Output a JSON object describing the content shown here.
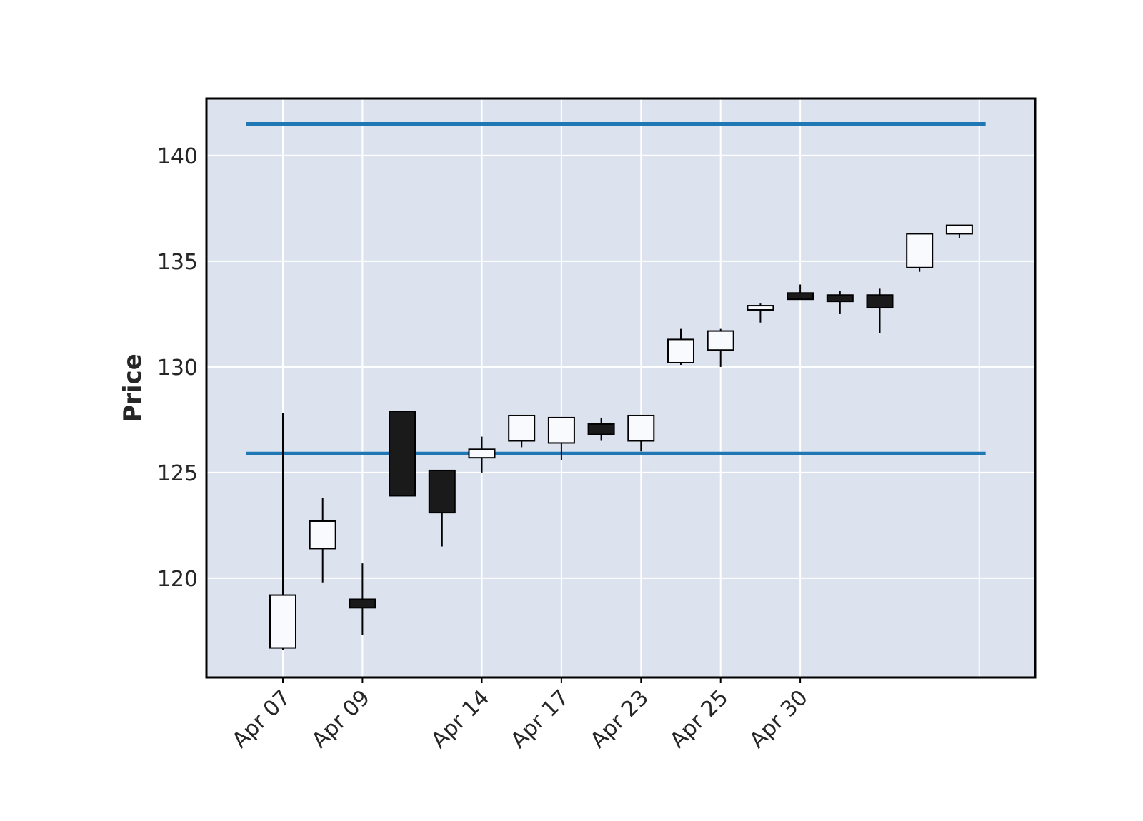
{
  "chart_data": {
    "type": "candlestick",
    "title": "",
    "xlabel": "",
    "ylabel": "Price",
    "grid": true,
    "colors": {
      "background": "#dde3ee",
      "grid": "#ffffff",
      "up_fill": "#f8fafd",
      "down_fill": "#1a1a1a",
      "line": "#1f77b4",
      "text": "#262626"
    },
    "x_tick_labels": [
      "Apr 07",
      "Apr 09",
      "Apr 14",
      "Apr 17",
      "Apr 23",
      "Apr 25",
      "Apr 30"
    ],
    "x_tick_indices": [
      0,
      2,
      5,
      7,
      9,
      11,
      13
    ],
    "y_ticks": [
      120,
      125,
      130,
      135,
      140
    ],
    "ylim": [
      115.3,
      142.7
    ],
    "candles": [
      {
        "open": 116.7,
        "high": 127.8,
        "low": 116.6,
        "close": 119.2
      },
      {
        "open": 121.4,
        "high": 123.8,
        "low": 119.8,
        "close": 122.7
      },
      {
        "open": 119.0,
        "high": 120.7,
        "low": 117.3,
        "close": 118.6
      },
      {
        "open": 127.9,
        "high": 127.9,
        "low": 123.9,
        "close": 123.9
      },
      {
        "open": 125.1,
        "high": 125.1,
        "low": 121.5,
        "close": 123.1
      },
      {
        "open": 125.7,
        "high": 126.7,
        "low": 125.0,
        "close": 126.1
      },
      {
        "open": 126.5,
        "high": 127.7,
        "low": 126.2,
        "close": 127.7
      },
      {
        "open": 126.4,
        "high": 127.6,
        "low": 125.6,
        "close": 127.6
      },
      {
        "open": 127.3,
        "high": 127.6,
        "low": 126.5,
        "close": 126.8
      },
      {
        "open": 126.5,
        "high": 127.7,
        "low": 126.0,
        "close": 127.7
      },
      {
        "open": 130.2,
        "high": 131.8,
        "low": 130.1,
        "close": 131.3
      },
      {
        "open": 130.8,
        "high": 131.8,
        "low": 130.0,
        "close": 131.7
      },
      {
        "open": 132.7,
        "high": 133.0,
        "low": 132.1,
        "close": 132.9
      },
      {
        "open": 133.5,
        "high": 133.9,
        "low": 133.2,
        "close": 133.2
      },
      {
        "open": 133.4,
        "high": 133.6,
        "low": 132.5,
        "close": 133.1
      },
      {
        "open": 133.4,
        "high": 133.7,
        "low": 131.6,
        "close": 132.8
      },
      {
        "open": 134.7,
        "high": 136.3,
        "low": 134.5,
        "close": 136.3
      },
      {
        "open": 136.3,
        "high": 136.7,
        "low": 136.1,
        "close": 136.7
      }
    ],
    "hlines": [
      141.5,
      125.9
    ]
  }
}
